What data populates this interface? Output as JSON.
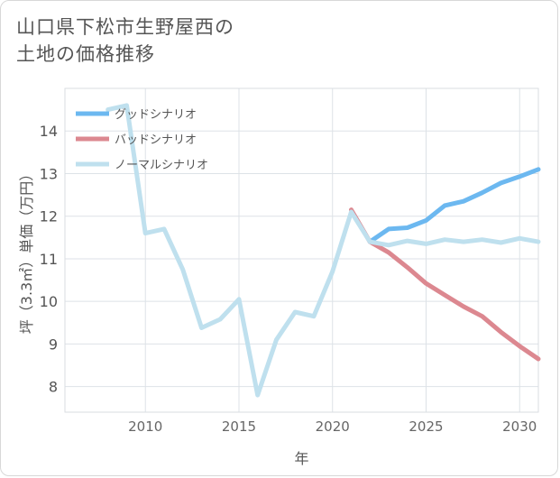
{
  "title": {
    "line1": "山口県下松市生野屋西の",
    "line2": "土地の価格推移"
  },
  "chart_data": {
    "type": "line",
    "xlabel": "年",
    "ylabel": "坪（3.3㎡）単価（万円）",
    "xlim": [
      2005.7,
      2031
    ],
    "ylim": [
      7.4,
      15.0
    ],
    "x_ticks": [
      2010,
      2015,
      2020,
      2025,
      2030
    ],
    "y_ticks": [
      8,
      9,
      10,
      11,
      12,
      13,
      14
    ],
    "grid": true,
    "legend_position": "top-left",
    "series": [
      {
        "name": "グッドシナリオ",
        "color": "#6cb8f0",
        "x": [
          2022,
          2023,
          2024,
          2025,
          2026,
          2027,
          2028,
          2029,
          2030,
          2031
        ],
        "y": [
          11.4,
          11.7,
          11.73,
          11.9,
          12.25,
          12.35,
          12.55,
          12.78,
          12.93,
          13.1
        ]
      },
      {
        "name": "バッドシナリオ",
        "color": "#dc8890",
        "x": [
          2021,
          2022,
          2023,
          2024,
          2025,
          2026,
          2027,
          2028,
          2029,
          2030,
          2031
        ],
        "y": [
          12.15,
          11.4,
          11.15,
          10.8,
          10.42,
          10.15,
          9.88,
          9.65,
          9.28,
          8.95,
          8.65
        ]
      },
      {
        "name": "ノーマルシナリオ",
        "color": "#bfe0ee",
        "x": [
          2008,
          2009,
          2010,
          2011,
          2012,
          2013,
          2014,
          2015,
          2016,
          2017,
          2018,
          2019,
          2020,
          2021,
          2022,
          2023,
          2024,
          2025,
          2026,
          2027,
          2028,
          2029,
          2030,
          2031
        ],
        "y": [
          14.5,
          14.6,
          11.6,
          11.7,
          10.75,
          9.38,
          9.58,
          10.05,
          7.8,
          9.1,
          9.75,
          9.65,
          10.7,
          12.1,
          11.4,
          11.32,
          11.42,
          11.35,
          11.45,
          11.4,
          11.45,
          11.38,
          11.48,
          11.4
        ]
      }
    ]
  }
}
